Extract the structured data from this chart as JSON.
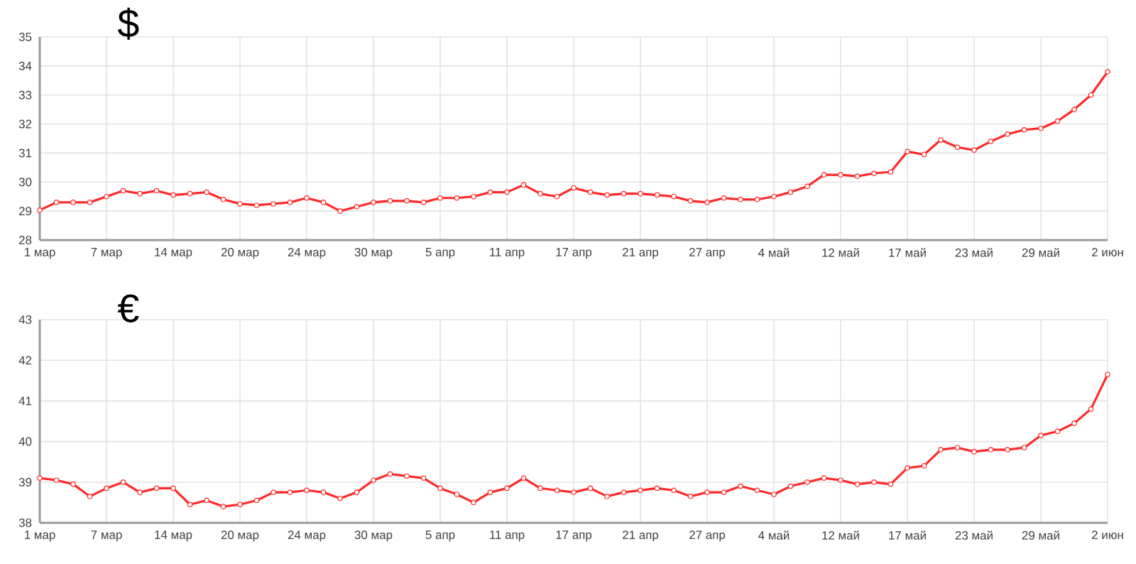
{
  "chart_data": [
    {
      "type": "line",
      "title": "$",
      "categories": [
        "1 мар",
        null,
        null,
        null,
        "7 мар",
        null,
        null,
        null,
        "14 мар",
        null,
        null,
        null,
        "20 мар",
        null,
        null,
        null,
        "24 мар",
        null,
        null,
        null,
        "30 мар",
        null,
        null,
        null,
        "5 апр",
        null,
        null,
        null,
        "11 апр",
        null,
        null,
        null,
        "17 апр",
        null,
        null,
        null,
        "21 апр",
        null,
        null,
        null,
        "27 апр",
        null,
        null,
        null,
        "4 май",
        null,
        null,
        null,
        "12 май",
        null,
        null,
        null,
        "17 май",
        null,
        null,
        null,
        "23 май",
        null,
        null,
        null,
        "29 май",
        null,
        null,
        null,
        "2 июн"
      ],
      "values": [
        29.03,
        29.3,
        29.3,
        29.3,
        29.5,
        29.7,
        29.6,
        29.7,
        29.55,
        29.6,
        29.65,
        29.4,
        29.25,
        29.2,
        29.25,
        29.3,
        29.45,
        29.3,
        29.0,
        29.15,
        29.3,
        29.35,
        29.35,
        29.3,
        29.45,
        29.45,
        29.5,
        29.65,
        29.65,
        29.9,
        29.6,
        29.5,
        29.8,
        29.65,
        29.55,
        29.6,
        29.6,
        29.55,
        29.5,
        29.35,
        29.3,
        29.45,
        29.4,
        29.4,
        29.5,
        29.65,
        29.85,
        30.25,
        30.25,
        30.2,
        30.3,
        30.35,
        31.05,
        30.95,
        31.45,
        31.2,
        31.1,
        31.4,
        31.65,
        31.8,
        31.85,
        32.1,
        32.5,
        33.0,
        33.8
      ],
      "color": "#ff2a2a",
      "ylim": [
        28,
        35
      ],
      "yticks": [
        28,
        29,
        30,
        31,
        32,
        33,
        34,
        35
      ],
      "grid": true,
      "marker": "circle",
      "line_style": "solid"
    },
    {
      "type": "line",
      "title": "€",
      "categories": [
        "1 мар",
        null,
        null,
        null,
        "7 мар",
        null,
        null,
        null,
        "14 мар",
        null,
        null,
        null,
        "20 мар",
        null,
        null,
        null,
        "24 мар",
        null,
        null,
        null,
        "30 мар",
        null,
        null,
        null,
        "5 апр",
        null,
        null,
        null,
        "11 апр",
        null,
        null,
        null,
        "17 апр",
        null,
        null,
        null,
        "21 апр",
        null,
        null,
        null,
        "27 апр",
        null,
        null,
        null,
        "4 май",
        null,
        null,
        null,
        "12 май",
        null,
        null,
        null,
        "17 май",
        null,
        null,
        null,
        "23 май",
        null,
        null,
        null,
        "29 май",
        null,
        null,
        null,
        "2 июн"
      ],
      "values": [
        39.1,
        39.05,
        38.95,
        38.65,
        38.85,
        39.0,
        38.75,
        38.85,
        38.85,
        38.45,
        38.55,
        38.4,
        38.45,
        38.55,
        38.75,
        38.75,
        38.8,
        38.75,
        38.6,
        38.75,
        39.05,
        39.2,
        39.15,
        39.1,
        38.85,
        38.7,
        38.5,
        38.75,
        38.85,
        39.1,
        38.85,
        38.8,
        38.75,
        38.85,
        38.65,
        38.75,
        38.8,
        38.85,
        38.8,
        38.65,
        38.75,
        38.75,
        38.9,
        38.8,
        38.7,
        38.9,
        39.0,
        39.1,
        39.05,
        38.95,
        39.0,
        38.95,
        39.35,
        39.4,
        39.8,
        39.85,
        39.75,
        39.8,
        39.8,
        39.85,
        40.15,
        40.25,
        40.45,
        40.8,
        41.65
      ],
      "color": "#ff2a2a",
      "ylim": [
        38,
        43
      ],
      "yticks": [
        38,
        39,
        40,
        41,
        42,
        43
      ],
      "grid": true,
      "marker": "circle",
      "line_style": "solid"
    }
  ]
}
